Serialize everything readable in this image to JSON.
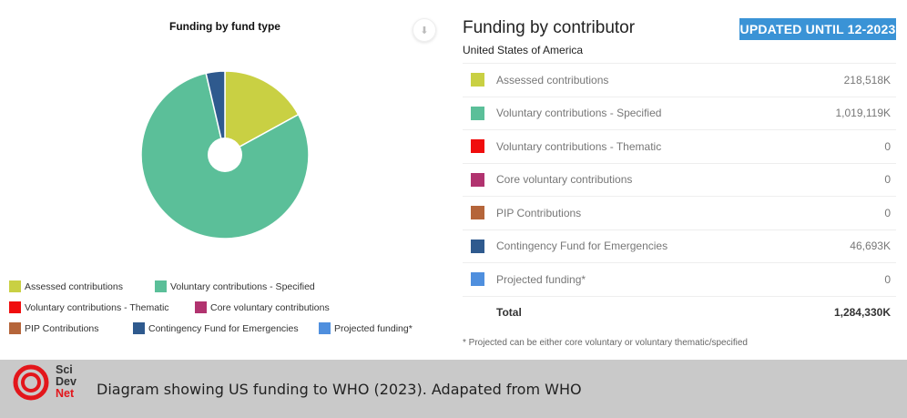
{
  "left_panel": {
    "title": "Funding by fund type",
    "download_icon": "download-icon",
    "legend": [
      {
        "label": "Assessed contributions",
        "color": "#c9d043"
      },
      {
        "label": "Voluntary contributions - Specified",
        "color": "#5bbf99"
      },
      {
        "label": "Voluntary contributions - Thematic",
        "color": "#f00d0d"
      },
      {
        "label": "Core voluntary contributions",
        "color": "#b1336f"
      },
      {
        "label": "PIP Contributions",
        "color": "#b5653a"
      },
      {
        "label": "Contingency Fund for Emergencies",
        "color": "#2f5a8e"
      },
      {
        "label": "Projected funding*",
        "color": "#4f8fde"
      }
    ]
  },
  "right_panel": {
    "title": "Funding by contributor",
    "badge": "UPDATED UNTIL 12-2023",
    "country": "United States of America",
    "rows": [
      {
        "label": "Assessed contributions",
        "value": "218,518K",
        "color": "#c9d043"
      },
      {
        "label": "Voluntary contributions - Specified",
        "value": "1,019,119K",
        "color": "#5bbf99"
      },
      {
        "label": "Voluntary contributions - Thematic",
        "value": "0",
        "color": "#f00d0d"
      },
      {
        "label": "Core voluntary contributions",
        "value": "0",
        "color": "#b1336f"
      },
      {
        "label": "PIP Contributions",
        "value": "0",
        "color": "#b5653a"
      },
      {
        "label": "Contingency Fund for Emergencies",
        "value": "46,693K",
        "color": "#2f5a8e"
      },
      {
        "label": "Projected funding*",
        "value": "0",
        "color": "#4f8fde"
      }
    ],
    "total": {
      "label": "Total",
      "value": "1,284,330K"
    },
    "footnote": "* Projected can be either core voluntary or voluntary thematic/specified"
  },
  "banner": {
    "logo": [
      "Sci",
      "Dev",
      "Net"
    ],
    "caption": "Diagram showing US funding to WHO (2023). Adapated from WHO"
  },
  "chart_data": {
    "type": "pie",
    "title": "Funding by fund type",
    "categories": [
      "Assessed contributions",
      "Voluntary contributions - Specified",
      "Voluntary contributions - Thematic",
      "Core voluntary contributions",
      "PIP Contributions",
      "Contingency Fund for Emergencies",
      "Projected funding*"
    ],
    "values": [
      218518,
      1019119,
      0,
      0,
      0,
      46693,
      0
    ],
    "unit": "K",
    "total": 1284330,
    "colors": [
      "#c9d043",
      "#5bbf99",
      "#f00d0d",
      "#b1336f",
      "#b5653a",
      "#2f5a8e",
      "#4f8fde"
    ],
    "legend_position": "bottom",
    "donut_hole": true
  }
}
